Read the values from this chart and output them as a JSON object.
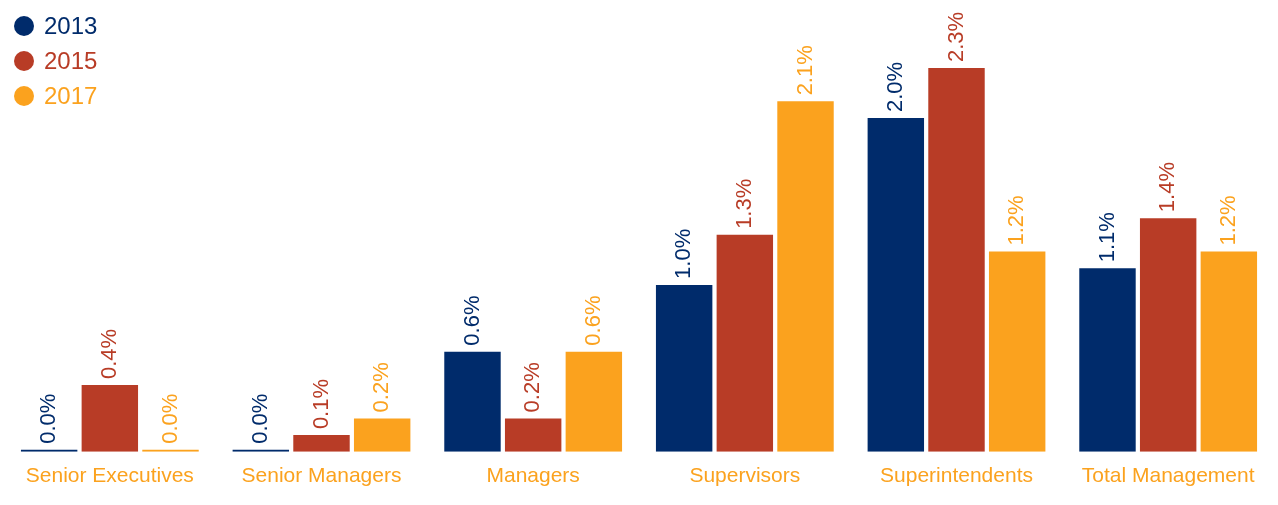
{
  "chart_data": {
    "type": "bar",
    "categories": [
      "Senior Executives",
      "Senior Managers",
      "Managers",
      "Supervisors",
      "Superintendents",
      "Total Management"
    ],
    "series": [
      {
        "name": "2013",
        "color": "#002b6b",
        "values": [
          0.0,
          0.0,
          0.6,
          1.0,
          2.0,
          1.1
        ],
        "value_labels": [
          "0.0%",
          "0.0%",
          "0.6%",
          "1.0%",
          "2.0%",
          "1.1%"
        ]
      },
      {
        "name": "2015",
        "color": "#b83c26",
        "values": [
          0.4,
          0.1,
          0.2,
          1.3,
          2.3,
          1.4
        ],
        "value_labels": [
          "0.4%",
          "0.1%",
          "0.2%",
          "1.3%",
          "2.3%",
          "1.4%"
        ]
      },
      {
        "name": "2017",
        "color": "#fba21e",
        "values": [
          0.0,
          0.2,
          0.6,
          2.1,
          1.2,
          1.2
        ],
        "value_labels": [
          "0.0%",
          "0.2%",
          "0.6%",
          "2.1%",
          "1.2%",
          "1.2%"
        ]
      }
    ],
    "ylim": [
      0,
      2.3
    ],
    "legend": "top left",
    "grid": false,
    "tick_labels": "x"
  }
}
